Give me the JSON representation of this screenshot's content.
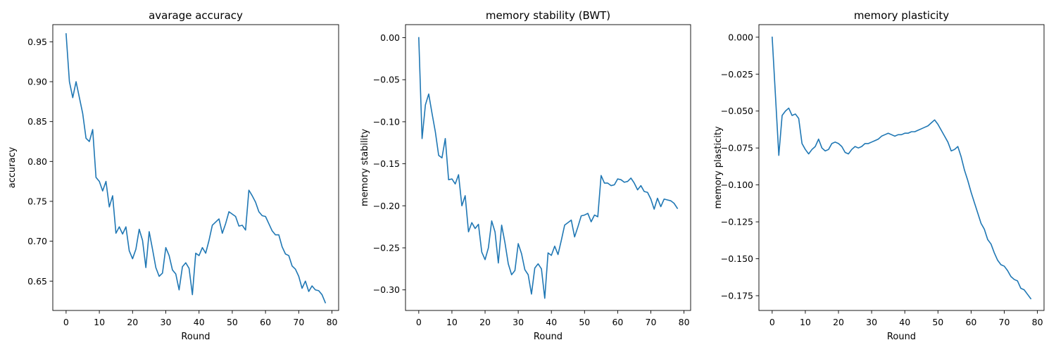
{
  "style": {
    "line_color": "#1f77b4",
    "axes_color": "#000000",
    "background": "#ffffff"
  },
  "chart_data": [
    {
      "type": "line",
      "title": "avarage accuracy",
      "xlabel": "Round",
      "ylabel": "accuracy",
      "xlim": [
        -4,
        82
      ],
      "ylim": [
        0.6132,
        0.9715
      ],
      "xticks": [
        0,
        10,
        20,
        30,
        40,
        50,
        60,
        70,
        80
      ],
      "xtick_labels": [
        "0",
        "10",
        "20",
        "30",
        "40",
        "50",
        "60",
        "70",
        "80"
      ],
      "yticks": [
        0.65,
        0.7,
        0.75,
        0.8,
        0.85,
        0.9,
        0.95
      ],
      "ytick_labels": [
        "0.65",
        "0.70",
        "0.75",
        "0.80",
        "0.85",
        "0.90",
        "0.95"
      ],
      "grid": false,
      "series": [
        {
          "color": "#1f77b4",
          "x": [
            0,
            1,
            2,
            3,
            4,
            5,
            6,
            7,
            8,
            9,
            10,
            11,
            12,
            13,
            14,
            15,
            16,
            17,
            18,
            19,
            20,
            21,
            22,
            23,
            24,
            25,
            26,
            27,
            28,
            29,
            30,
            31,
            32,
            33,
            34,
            35,
            36,
            37,
            38,
            39,
            40,
            41,
            42,
            43,
            44,
            45,
            46,
            47,
            48,
            49,
            50,
            51,
            52,
            53,
            54,
            55,
            56,
            57,
            58,
            59,
            60,
            61,
            62,
            63,
            64,
            65,
            66,
            67,
            68,
            69,
            70,
            71,
            72,
            73,
            74,
            75,
            76,
            77,
            78
          ],
          "y": [
            0.96,
            0.9,
            0.88,
            0.9,
            0.88,
            0.86,
            0.829,
            0.825,
            0.84,
            0.78,
            0.775,
            0.763,
            0.775,
            0.743,
            0.757,
            0.71,
            0.718,
            0.709,
            0.718,
            0.688,
            0.678,
            0.69,
            0.715,
            0.701,
            0.667,
            0.712,
            0.69,
            0.667,
            0.656,
            0.66,
            0.692,
            0.682,
            0.664,
            0.659,
            0.639,
            0.668,
            0.673,
            0.666,
            0.633,
            0.685,
            0.682,
            0.692,
            0.685,
            0.701,
            0.72,
            0.724,
            0.728,
            0.71,
            0.722,
            0.737,
            0.734,
            0.731,
            0.719,
            0.72,
            0.714,
            0.764,
            0.757,
            0.749,
            0.737,
            0.732,
            0.731,
            0.722,
            0.713,
            0.708,
            0.708,
            0.693,
            0.684,
            0.682,
            0.669,
            0.665,
            0.656,
            0.641,
            0.65,
            0.637,
            0.644,
            0.639,
            0.638,
            0.633,
            0.623
          ]
        }
      ]
    },
    {
      "type": "line",
      "title": "memory stability (BWT)",
      "xlabel": "Round",
      "ylabel": "memory stability",
      "xlim": [
        -4,
        82
      ],
      "ylim": [
        -0.3245,
        0.0155
      ],
      "xticks": [
        0,
        10,
        20,
        30,
        40,
        50,
        60,
        70,
        80
      ],
      "xtick_labels": [
        "0",
        "10",
        "20",
        "30",
        "40",
        "50",
        "60",
        "70",
        "80"
      ],
      "yticks": [
        -0.3,
        -0.25,
        -0.2,
        -0.15,
        -0.1,
        -0.05,
        0.0
      ],
      "ytick_labels": [
        "−0.30",
        "−0.25",
        "−0.20",
        "−0.15",
        "−0.10",
        "−0.05",
        "0.00"
      ],
      "grid": false,
      "series": [
        {
          "color": "#1f77b4",
          "x": [
            0,
            1,
            2,
            3,
            4,
            5,
            6,
            7,
            8,
            9,
            10,
            11,
            12,
            13,
            14,
            15,
            16,
            17,
            18,
            19,
            20,
            21,
            22,
            23,
            24,
            25,
            26,
            27,
            28,
            29,
            30,
            31,
            32,
            33,
            34,
            35,
            36,
            37,
            38,
            39,
            40,
            41,
            42,
            43,
            44,
            45,
            46,
            47,
            48,
            49,
            50,
            51,
            52,
            53,
            54,
            55,
            56,
            57,
            58,
            59,
            60,
            61,
            62,
            63,
            64,
            65,
            66,
            67,
            68,
            69,
            70,
            71,
            72,
            73,
            74,
            75,
            76,
            77,
            78
          ],
          "y": [
            0.0,
            -0.12,
            -0.08,
            -0.067,
            -0.09,
            -0.112,
            -0.14,
            -0.143,
            -0.12,
            -0.169,
            -0.168,
            -0.174,
            -0.163,
            -0.2,
            -0.188,
            -0.231,
            -0.22,
            -0.227,
            -0.222,
            -0.255,
            -0.264,
            -0.25,
            -0.218,
            -0.231,
            -0.268,
            -0.223,
            -0.244,
            -0.269,
            -0.282,
            -0.277,
            -0.245,
            -0.257,
            -0.276,
            -0.282,
            -0.305,
            -0.274,
            -0.269,
            -0.275,
            -0.31,
            -0.256,
            -0.259,
            -0.248,
            -0.258,
            -0.241,
            -0.223,
            -0.22,
            -0.217,
            -0.237,
            -0.225,
            -0.212,
            -0.211,
            -0.209,
            -0.219,
            -0.211,
            -0.213,
            -0.164,
            -0.173,
            -0.173,
            -0.176,
            -0.175,
            -0.168,
            -0.169,
            -0.172,
            -0.171,
            -0.167,
            -0.173,
            -0.181,
            -0.176,
            -0.183,
            -0.184,
            -0.192,
            -0.204,
            -0.191,
            -0.201,
            -0.192,
            -0.193,
            -0.194,
            -0.197,
            -0.203
          ]
        }
      ]
    },
    {
      "type": "line",
      "title": "memory plasticity",
      "xlabel": "Round",
      "ylabel": "memory plasticity",
      "xlim": [
        -4,
        82
      ],
      "ylim": [
        -0.185,
        0.0085
      ],
      "xticks": [
        0,
        10,
        20,
        30,
        40,
        50,
        60,
        70,
        80
      ],
      "xtick_labels": [
        "0",
        "10",
        "20",
        "30",
        "40",
        "50",
        "60",
        "70",
        "80"
      ],
      "yticks": [
        -0.175,
        -0.15,
        -0.125,
        -0.1,
        -0.075,
        -0.05,
        -0.025,
        0.0
      ],
      "ytick_labels": [
        "−0.175",
        "−0.150",
        "−0.125",
        "−0.100",
        "−0.075",
        "−0.050",
        "−0.025",
        "0.000"
      ],
      "grid": false,
      "series": [
        {
          "color": "#1f77b4",
          "x": [
            0,
            1,
            2,
            3,
            4,
            5,
            6,
            7,
            8,
            9,
            10,
            11,
            12,
            13,
            14,
            15,
            16,
            17,
            18,
            19,
            20,
            21,
            22,
            23,
            24,
            25,
            26,
            27,
            28,
            29,
            30,
            31,
            32,
            33,
            34,
            35,
            36,
            37,
            38,
            39,
            40,
            41,
            42,
            43,
            44,
            45,
            46,
            47,
            48,
            49,
            50,
            51,
            52,
            53,
            54,
            55,
            56,
            57,
            58,
            59,
            60,
            61,
            62,
            63,
            64,
            65,
            66,
            67,
            68,
            69,
            70,
            71,
            72,
            73,
            74,
            75,
            76,
            77,
            78
          ],
          "y": [
            0.0,
            -0.04,
            -0.08,
            -0.053,
            -0.05,
            -0.048,
            -0.053,
            -0.052,
            -0.055,
            -0.072,
            -0.076,
            -0.079,
            -0.076,
            -0.074,
            -0.069,
            -0.075,
            -0.077,
            -0.076,
            -0.072,
            -0.071,
            -0.072,
            -0.074,
            -0.078,
            -0.079,
            -0.076,
            -0.074,
            -0.075,
            -0.074,
            -0.072,
            -0.072,
            -0.071,
            -0.07,
            -0.069,
            -0.067,
            -0.066,
            -0.065,
            -0.066,
            -0.067,
            -0.066,
            -0.066,
            -0.065,
            -0.065,
            -0.064,
            -0.064,
            -0.063,
            -0.062,
            -0.061,
            -0.06,
            -0.058,
            -0.056,
            -0.059,
            -0.063,
            -0.067,
            -0.071,
            -0.077,
            -0.076,
            -0.074,
            -0.081,
            -0.09,
            -0.097,
            -0.105,
            -0.112,
            -0.119,
            -0.126,
            -0.13,
            -0.137,
            -0.14,
            -0.146,
            -0.151,
            -0.154,
            -0.155,
            -0.158,
            -0.162,
            -0.164,
            -0.165,
            -0.17,
            -0.171,
            -0.174,
            -0.177
          ]
        }
      ]
    }
  ]
}
